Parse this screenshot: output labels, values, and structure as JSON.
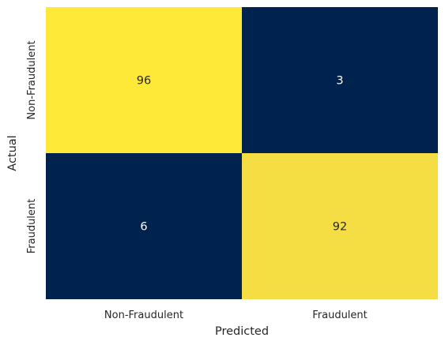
{
  "chart_data": {
    "type": "heatmap",
    "xlabel": "Predicted",
    "ylabel": "Actual",
    "x_categories": [
      "Non-Fraudulent",
      "Fraudulent"
    ],
    "y_categories": [
      "Non-Fraudulent",
      "Fraudulent"
    ],
    "values": [
      [
        96,
        3
      ],
      [
        6,
        92
      ]
    ],
    "colormap": "cividis",
    "colorbar": false,
    "grid": false,
    "colors": {
      "96": "#fee838",
      "92": "#f4de44",
      "6": "#00224e",
      "3": "#00224e",
      "text_on_light": "#262626",
      "text_on_dark": "#ffffff"
    }
  }
}
